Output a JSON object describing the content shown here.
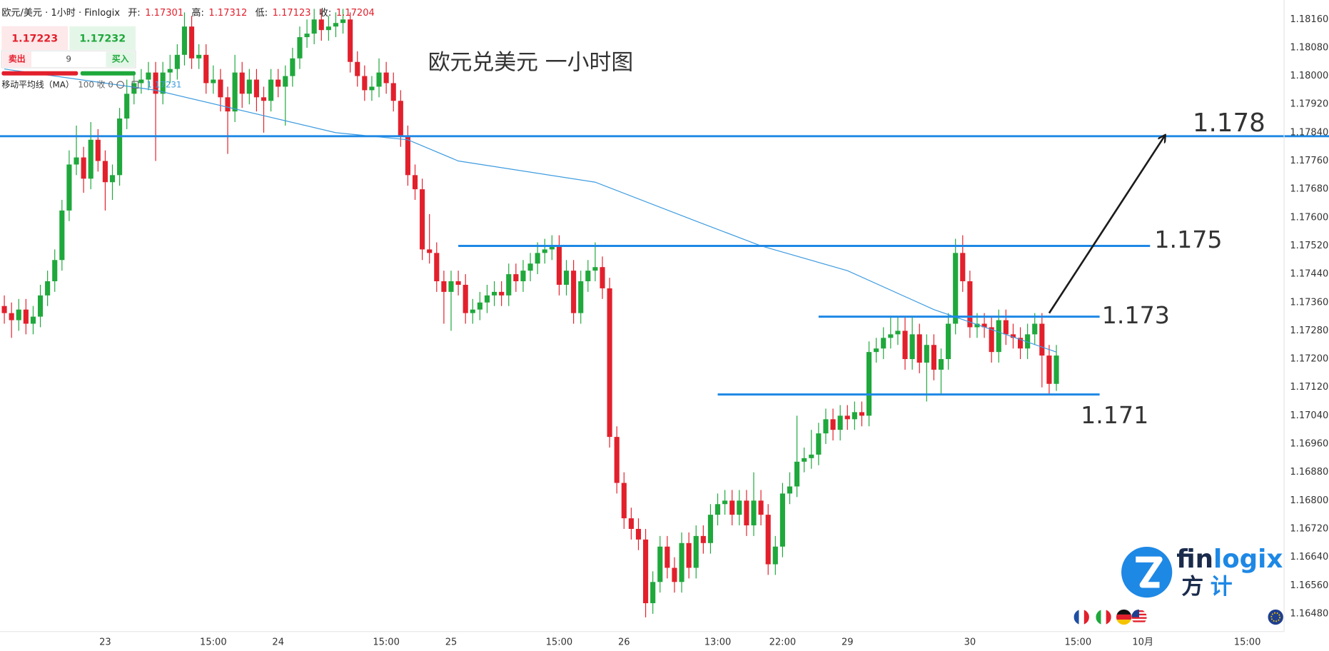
{
  "chart_data": {
    "type": "candlestick",
    "title": "欧元兑美元 一小时图",
    "header": {
      "symbol": "欧元/美元 · 1小时 · Finlogix",
      "open_label": "开:",
      "open": "1.17301",
      "high_label": "高:",
      "high": "1.17312",
      "low_label": "低:",
      "low": "1.17123",
      "close_label": "收:",
      "close": "1.17204"
    },
    "trade_panel": {
      "sell_price": "1.17223",
      "buy_price": "1.17232",
      "sell": "卖出",
      "size": "9",
      "buy": "买入"
    },
    "indicator": {
      "name": "移动平均线（MA）",
      "params": "100 收 0",
      "value": "1.17231"
    },
    "logo": {
      "word_a": "fin",
      "word_b": "logix",
      "cn_a": "方",
      "cn_b": "计"
    },
    "up_color": "#1fa83c",
    "down_color": "#e2202c",
    "open": [
      1.1735,
      1.1733,
      1.1731,
      1.1734,
      1.173,
      1.1732,
      1.1738,
      1.1742,
      1.1748,
      1.1762,
      1.1775,
      1.1777,
      1.1771,
      1.1782,
      1.1776,
      1.177,
      1.1772,
      1.1788,
      1.1795,
      1.1798,
      1.1799,
      1.1801,
      1.1795,
      1.1801,
      1.1802,
      1.1806,
      1.1814,
      1.1805,
      1.1806,
      1.1798,
      1.1799,
      1.1794,
      1.179,
      1.1801,
      1.1795,
      1.1799,
      1.1794,
      1.1793,
      1.1799,
      1.1797,
      1.18,
      1.1805,
      1.1811,
      1.1812,
      1.1816,
      1.1813,
      1.1814,
      1.1815,
      1.1816,
      1.1804,
      1.18,
      1.1796,
      1.1797,
      1.1801,
      1.1798,
      1.1793,
      1.1783,
      1.1772,
      1.1768,
      1.1751,
      1.175,
      1.1742,
      1.1739,
      1.1742,
      1.1741,
      1.1733,
      1.1734,
      1.1736,
      1.1738,
      1.1739,
      1.1738,
      1.1744,
      1.1742,
      1.1745,
      1.1747,
      1.175,
      1.1751,
      1.1752,
      1.1741,
      1.1745,
      1.1733,
      1.1742,
      1.1745,
      1.1746,
      1.174,
      1.1698,
      1.1685,
      1.1675,
      1.1672,
      1.1669,
      1.1651,
      1.1657,
      1.1667,
      1.1661,
      1.1657,
      1.1668,
      1.1661,
      1.167,
      1.1668,
      1.1676,
      1.1679,
      1.168,
      1.1676,
      1.168,
      1.1673,
      1.168,
      1.1676,
      1.1662,
      1.1667,
      1.1682,
      1.1684,
      1.1691,
      1.1692,
      1.1693,
      1.1699,
      1.1703,
      1.17,
      1.1704,
      1.1703,
      1.1705,
      1.1704,
      1.1722,
      1.1723,
      1.1726,
      1.1727,
      1.1728,
      1.172,
      1.1727,
      1.1719,
      1.1724,
      1.1717,
      1.172,
      1.173,
      1.175,
      1.1742,
      1.1729,
      1.173,
      1.1729,
      1.1722,
      1.1731,
      1.1727,
      1.1726,
      1.1723,
      1.1727,
      1.173,
      1.1721,
      1.1713
    ],
    "high": [
      1.1738,
      1.1736,
      1.1737,
      1.1737,
      1.1735,
      1.1741,
      1.1745,
      1.1751,
      1.1765,
      1.1779,
      1.1786,
      1.178,
      1.1787,
      1.1785,
      1.1779,
      1.1775,
      1.1791,
      1.1799,
      1.1801,
      1.1802,
      1.1804,
      1.1804,
      1.1804,
      1.1806,
      1.1809,
      1.1818,
      1.1817,
      1.1809,
      1.1809,
      1.1803,
      1.1802,
      1.1797,
      1.1806,
      1.1804,
      1.1802,
      1.1802,
      1.1797,
      1.1802,
      1.1802,
      1.1803,
      1.1808,
      1.1814,
      1.1816,
      1.1819,
      1.1819,
      1.1817,
      1.1818,
      1.1819,
      1.1818,
      1.1807,
      1.1803,
      1.18,
      1.1805,
      1.1804,
      1.1801,
      1.1796,
      1.1786,
      1.1775,
      1.1771,
      1.1761,
      1.1753,
      1.1745,
      1.1745,
      1.1745,
      1.1744,
      1.1737,
      1.1739,
      1.1741,
      1.1742,
      1.1742,
      1.1747,
      1.1747,
      1.1748,
      1.175,
      1.1753,
      1.1754,
      1.1755,
      1.1755,
      1.1748,
      1.1748,
      1.1745,
      1.1748,
      1.1753,
      1.1749,
      1.1743,
      1.1701,
      1.1688,
      1.1678,
      1.1675,
      1.1672,
      1.166,
      1.167,
      1.167,
      1.1664,
      1.1671,
      1.1671,
      1.1673,
      1.1673,
      1.1679,
      1.1682,
      1.1683,
      1.1683,
      1.1683,
      1.1683,
      1.1688,
      1.1683,
      1.1679,
      1.167,
      1.1685,
      1.1688,
      1.1704,
      1.1695,
      1.17,
      1.1702,
      1.1706,
      1.1706,
      1.1707,
      1.1707,
      1.1708,
      1.1708,
      1.1725,
      1.1726,
      1.1729,
      1.1732,
      1.1732,
      1.1732,
      1.1732,
      1.173,
      1.1727,
      1.1727,
      1.1723,
      1.1733,
      1.1754,
      1.1755,
      1.1745,
      1.1733,
      1.1733,
      1.1732,
      1.1734,
      1.1734,
      1.173,
      1.1729,
      1.173,
      1.1733,
      1.1733,
      1.1724,
      1.1724
    ],
    "low": [
      1.173,
      1.1726,
      1.1728,
      1.1727,
      1.1727,
      1.1729,
      1.1735,
      1.1739,
      1.1745,
      1.1759,
      1.1772,
      1.1767,
      1.1768,
      1.1773,
      1.1762,
      1.1765,
      1.1769,
      1.1785,
      1.1792,
      1.1795,
      1.1796,
      1.1776,
      1.1792,
      1.1798,
      1.1799,
      1.1803,
      1.1802,
      1.1802,
      1.1795,
      1.1795,
      1.179,
      1.1778,
      1.1787,
      1.1791,
      1.1792,
      1.179,
      1.1784,
      1.179,
      1.1794,
      1.1786,
      1.1797,
      1.1802,
      1.1808,
      1.1809,
      1.181,
      1.181,
      1.1811,
      1.1812,
      1.1801,
      1.1797,
      1.1793,
      1.1793,
      1.1794,
      1.1795,
      1.179,
      1.178,
      1.1769,
      1.1765,
      1.1748,
      1.1747,
      1.1739,
      1.173,
      1.1728,
      1.1738,
      1.173,
      1.173,
      1.1731,
      1.1733,
      1.1735,
      1.1735,
      1.1735,
      1.1739,
      1.1739,
      1.1742,
      1.1744,
      1.1747,
      1.1748,
      1.1738,
      1.1738,
      1.173,
      1.173,
      1.1739,
      1.1742,
      1.1737,
      1.1695,
      1.1682,
      1.1672,
      1.1669,
      1.1666,
      1.1647,
      1.1648,
      1.1654,
      1.1658,
      1.1654,
      1.1654,
      1.1658,
      1.1658,
      1.1665,
      1.1665,
      1.1673,
      1.1676,
      1.1673,
      1.1673,
      1.167,
      1.167,
      1.1673,
      1.1659,
      1.1659,
      1.1664,
      1.1679,
      1.1681,
      1.1688,
      1.1689,
      1.169,
      1.1696,
      1.1697,
      1.1697,
      1.17,
      1.17,
      1.1701,
      1.1701,
      1.1719,
      1.172,
      1.1723,
      1.1724,
      1.1717,
      1.1717,
      1.1716,
      1.1708,
      1.1714,
      1.171,
      1.1717,
      1.1727,
      1.1739,
      1.1726,
      1.1726,
      1.1726,
      1.1719,
      1.1719,
      1.1724,
      1.1723,
      1.172,
      1.172,
      1.1724,
      1.1712,
      1.171,
      1.1711
    ],
    "close": [
      1.1733,
      1.1731,
      1.1734,
      1.173,
      1.1732,
      1.1738,
      1.1742,
      1.1748,
      1.1762,
      1.1775,
      1.1777,
      1.1771,
      1.1782,
      1.1776,
      1.177,
      1.1772,
      1.1788,
      1.1795,
      1.1798,
      1.1799,
      1.1801,
      1.1795,
      1.1801,
      1.1802,
      1.1806,
      1.1814,
      1.1805,
      1.1806,
      1.1798,
      1.1799,
      1.1794,
      1.179,
      1.1801,
      1.1795,
      1.1799,
      1.1794,
      1.1793,
      1.1799,
      1.1797,
      1.18,
      1.1805,
      1.1811,
      1.1812,
      1.1816,
      1.1813,
      1.1814,
      1.1815,
      1.1816,
      1.1804,
      1.18,
      1.1796,
      1.1797,
      1.1801,
      1.1798,
      1.1793,
      1.1783,
      1.1772,
      1.1768,
      1.1751,
      1.175,
      1.1742,
      1.1739,
      1.1742,
      1.1741,
      1.1733,
      1.1734,
      1.1736,
      1.1738,
      1.1739,
      1.1738,
      1.1744,
      1.1742,
      1.1745,
      1.1747,
      1.175,
      1.1751,
      1.1752,
      1.1741,
      1.1745,
      1.1733,
      1.1742,
      1.1745,
      1.1746,
      1.174,
      1.1698,
      1.1685,
      1.1675,
      1.1672,
      1.1669,
      1.1651,
      1.1657,
      1.1667,
      1.1661,
      1.1657,
      1.1668,
      1.1661,
      1.167,
      1.1668,
      1.1676,
      1.1679,
      1.168,
      1.1676,
      1.168,
      1.1673,
      1.168,
      1.1676,
      1.1662,
      1.1667,
      1.1682,
      1.1684,
      1.1691,
      1.1692,
      1.1693,
      1.1699,
      1.1703,
      1.17,
      1.1704,
      1.1703,
      1.1705,
      1.1704,
      1.1722,
      1.1723,
      1.1726,
      1.1727,
      1.1728,
      1.172,
      1.1727,
      1.1719,
      1.1724,
      1.1717,
      1.172,
      1.173,
      1.175,
      1.1742,
      1.1729,
      1.173,
      1.1729,
      1.1722,
      1.1731,
      1.1727,
      1.1726,
      1.1723,
      1.1727,
      1.173,
      1.1721,
      1.1713,
      1.1721
    ],
    "ma": {
      "color": "#3d9be0",
      "x": [
        0,
        21,
        46,
        56,
        63,
        82,
        96,
        105,
        117,
        129,
        146
      ],
      "values": [
        1.1802,
        1.1796,
        1.1784,
        1.1782,
        1.1776,
        1.177,
        1.1759,
        1.1752,
        1.1745,
        1.1734,
        1.1722
      ]
    },
    "levels": [
      {
        "label": "1.178",
        "value": 1.1783
      },
      {
        "label": "1.175",
        "value": 1.1752,
        "from": 63,
        "to": 159
      },
      {
        "label": "1.173",
        "value": 1.1732,
        "from": 113,
        "to": 152
      },
      {
        "label": "1.171",
        "value": 1.171,
        "from": 99,
        "to": 152
      }
    ],
    "level_color": "#1e88e5",
    "arrow": {
      "from": [
        145,
        1.1733
      ],
      "to": [
        161,
        1.1783
      ],
      "color": "#1b1b1b"
    },
    "xlim": [
      -0.6,
      177.6
    ],
    "xticks": [
      {
        "value": 14,
        "label": "23"
      },
      {
        "value": 29,
        "label": "15:00"
      },
      {
        "value": 38,
        "label": "24"
      },
      {
        "value": 53,
        "label": "15:00"
      },
      {
        "value": 62,
        "label": "25"
      },
      {
        "value": 77,
        "label": "15:00"
      },
      {
        "value": 86,
        "label": "26"
      },
      {
        "value": 99,
        "label": "13:00"
      },
      {
        "value": 108,
        "label": "22:00"
      },
      {
        "value": 117,
        "label": "29"
      },
      {
        "value": 134,
        "label": "30"
      },
      {
        "value": 149,
        "label": "15:00"
      },
      {
        "value": 158,
        "label": "10月"
      },
      {
        "value": 172.5,
        "label": "15:00"
      }
    ],
    "ylim": [
      1.1643,
      1.18215
    ],
    "yticks": [
      {
        "value": 1.1816,
        "label": "1.18160"
      },
      {
        "value": 1.1808,
        "label": "1.18080"
      },
      {
        "value": 1.18,
        "label": "1.18000"
      },
      {
        "value": 1.1792,
        "label": "1.17920"
      },
      {
        "value": 1.1784,
        "label": "1.17840"
      },
      {
        "value": 1.1776,
        "label": "1.17760"
      },
      {
        "value": 1.1768,
        "label": "1.17680"
      },
      {
        "value": 1.176,
        "label": "1.17600"
      },
      {
        "value": 1.1752,
        "label": "1.17520"
      },
      {
        "value": 1.1744,
        "label": "1.17440"
      },
      {
        "value": 1.1736,
        "label": "1.17360"
      },
      {
        "value": 1.1728,
        "label": "1.17280"
      },
      {
        "value": 1.172,
        "label": "1.17200"
      },
      {
        "value": 1.1712,
        "label": "1.17120"
      },
      {
        "value": 1.1704,
        "label": "1.17040"
      },
      {
        "value": 1.1696,
        "label": "1.16960"
      },
      {
        "value": 1.1688,
        "label": "1.16880"
      },
      {
        "value": 1.168,
        "label": "1.16800"
      },
      {
        "value": 1.1672,
        "label": "1.16720"
      },
      {
        "value": 1.1664,
        "label": "1.16640"
      },
      {
        "value": 1.1656,
        "label": "1.16560"
      },
      {
        "value": 1.1648,
        "label": "1.16480"
      }
    ]
  }
}
